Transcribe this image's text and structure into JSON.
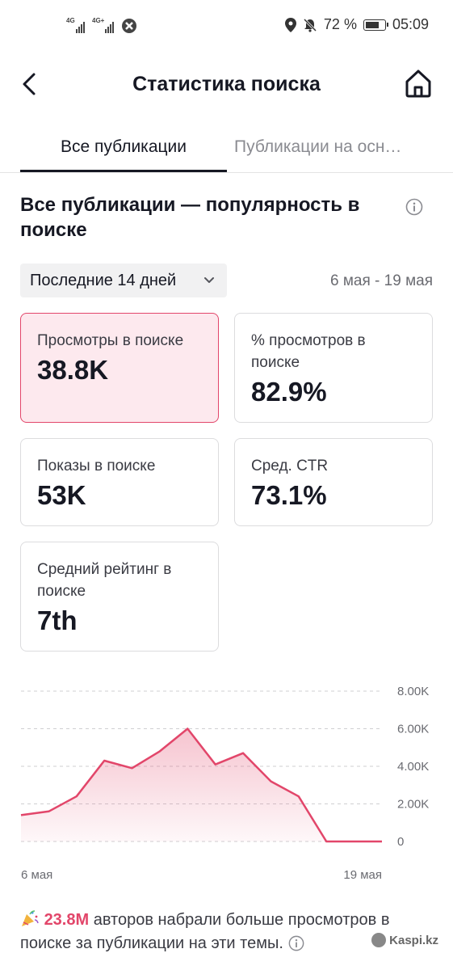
{
  "status_bar": {
    "network1": "4G",
    "network2": "4G+",
    "battery": "72 %",
    "time": "05:09"
  },
  "header": {
    "title": "Статистика поиска"
  },
  "tabs": [
    {
      "label": "Все публикации",
      "active": true
    },
    {
      "label": "Публикации на осн…",
      "active": false
    }
  ],
  "section": {
    "title": "Все публикации — популярность в поиске"
  },
  "filter": {
    "range_label": "Последние 14 дней",
    "date_range": "6 мая - 19 мая"
  },
  "cards": [
    {
      "label": "Просмотры в поиске",
      "value": "38.8K",
      "selected": true
    },
    {
      "label": "% просмотров в поиске",
      "value": "82.9%",
      "selected": false
    },
    {
      "label": "Показы в поиске",
      "value": "53K",
      "selected": false
    },
    {
      "label": "Сред. CTR",
      "value": "73.1%",
      "selected": false
    },
    {
      "label": "Средний рейтинг в поиске",
      "value": "7th",
      "selected": false
    }
  ],
  "chart_data": {
    "type": "area",
    "x_start_label": "6 мая",
    "x_end_label": "19 мая",
    "y_ticks": [
      "8.00K",
      "6.00K",
      "4.00K",
      "2.00K",
      "0"
    ],
    "ylim": [
      0,
      8000
    ],
    "values": [
      1400,
      1600,
      2400,
      4300,
      3900,
      4800,
      6000,
      4100,
      4700,
      3200,
      2400,
      0,
      0,
      0
    ],
    "grid": true,
    "color": "#e2466a"
  },
  "footer": {
    "highlight": "23.8M",
    "text": "авторов набрали больше просмотров в поиске за публикации на эти темы."
  },
  "watermark": "Kaspi.kz"
}
